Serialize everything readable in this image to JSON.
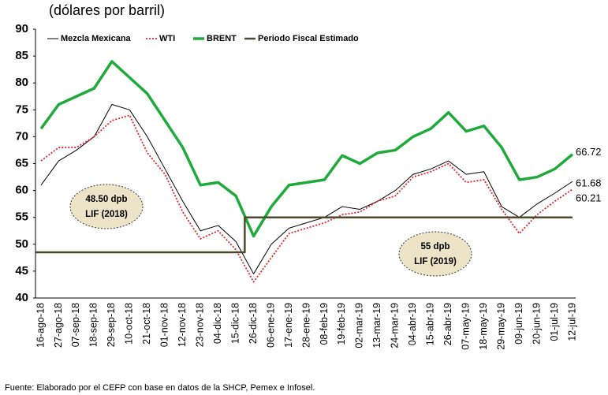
{
  "chart_data": {
    "type": "line",
    "subtitle": "(dólares por barril)",
    "categories": [
      "16-ago-18",
      "27-ago-18",
      "07-sep-18",
      "18-sep-18",
      "29-sep-18",
      "10-oct-18",
      "21-oct-18",
      "01-nov-18",
      "12-nov-18",
      "23-nov-18",
      "04-dic-18",
      "15-dic-18",
      "26-dic-18",
      "06-ene-19",
      "17-ene-19",
      "28-ene-19",
      "08-feb-19",
      "19-feb-19",
      "02-mar-19",
      "13-mar-19",
      "24-mar-19",
      "04-abr-19",
      "15-abr-19",
      "26-abr-19",
      "07-may-19",
      "18-may-19",
      "29-may-19",
      "09-jun-19",
      "20-jun-19",
      "01-jul-19",
      "12-jul-19"
    ],
    "series": [
      {
        "name": "Mezcla Mexicana",
        "color": "#000000",
        "values": [
          61,
          65.5,
          67.5,
          70,
          76,
          75,
          70,
          64,
          58,
          52.5,
          53.5,
          50.5,
          44.5,
          50,
          53,
          54,
          55,
          57,
          56.5,
          58,
          60,
          63,
          64,
          65.5,
          63,
          63.5,
          57,
          55,
          57.5,
          59.5,
          61.68
        ]
      },
      {
        "name": "WTI",
        "color": "#e3262a",
        "dash": "dotted",
        "values": [
          65.5,
          68,
          68,
          70,
          73,
          74,
          67,
          63,
          56,
          51,
          52.5,
          49,
          43,
          47.5,
          52,
          53,
          54,
          55.5,
          56,
          58,
          59,
          62.5,
          63.5,
          65,
          61.5,
          62,
          56.5,
          52,
          55.5,
          58,
          60.21
        ]
      },
      {
        "name": "BRENT",
        "color": "#1faa3c",
        "values": [
          71.5,
          76,
          77.5,
          79,
          84,
          81,
          78,
          73,
          68,
          61,
          61.5,
          59,
          51.5,
          57,
          61,
          61.5,
          62,
          66.5,
          65,
          67,
          67.5,
          70,
          71.5,
          74.5,
          71,
          72,
          68,
          62,
          62.5,
          64,
          66.72
        ]
      },
      {
        "name": "Periodo Fiscal Estimado",
        "color": "#4d4a2e",
        "step": true,
        "values": [
          48.5,
          48.5,
          48.5,
          48.5,
          48.5,
          48.5,
          48.5,
          48.5,
          48.5,
          48.5,
          48.5,
          48.5,
          55,
          55,
          55,
          55,
          55,
          55,
          55,
          55,
          55,
          55,
          55,
          55,
          55,
          55,
          55,
          55,
          55,
          55,
          55
        ]
      }
    ],
    "ylim": [
      40,
      90
    ],
    "yticks": [
      40,
      45,
      50,
      55,
      60,
      65,
      70,
      75,
      80,
      85,
      90
    ],
    "grid": false,
    "annotations": [
      {
        "text": "48.50 dpb",
        "text2": "LIF (2018)"
      },
      {
        "text": "55 dpb",
        "text2": "LIF (2019)"
      }
    ],
    "source": "Fuente: Elaborado por el CEFP con base en datos de la SHCP, Pemex e Infosel."
  }
}
